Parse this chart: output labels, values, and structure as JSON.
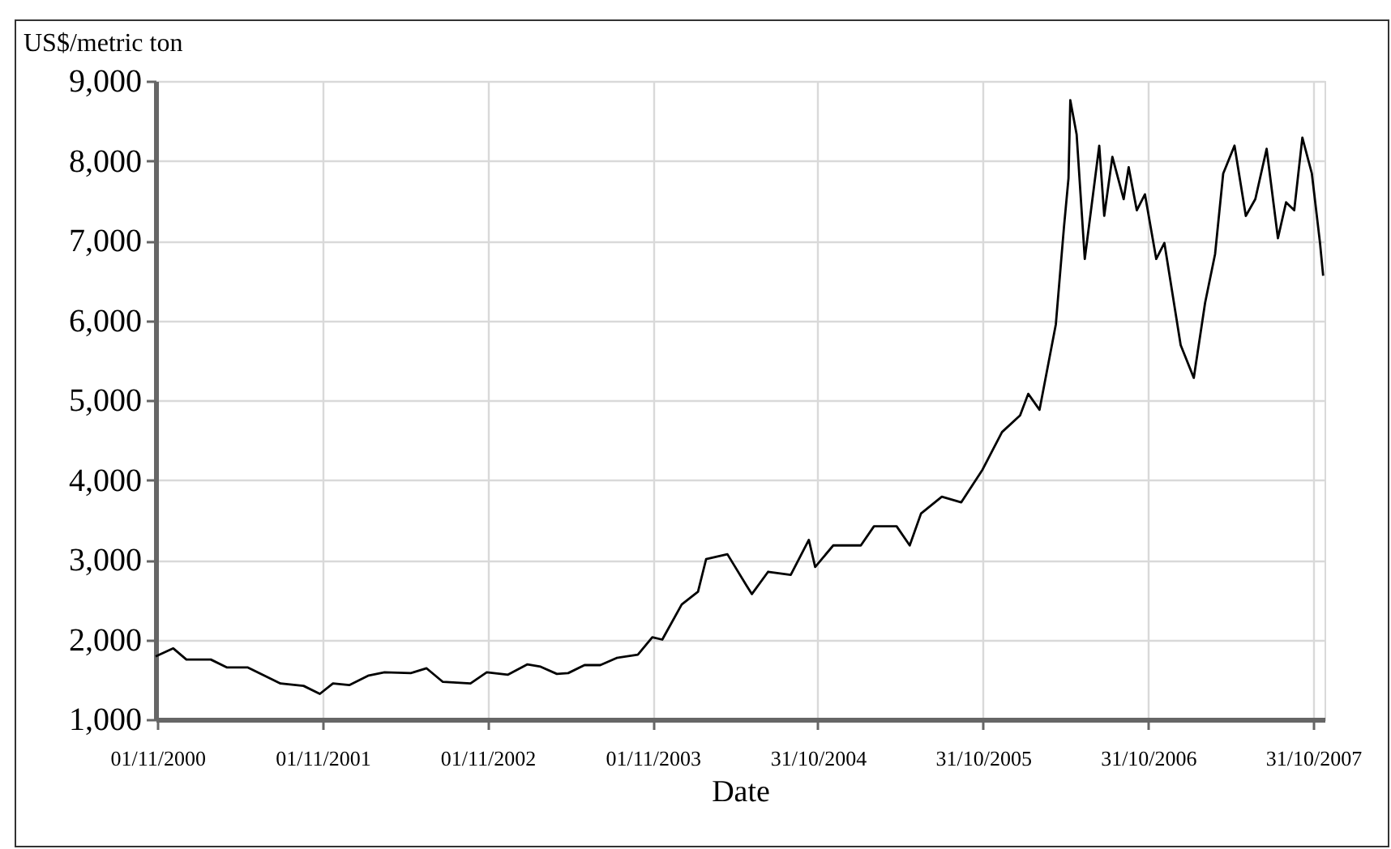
{
  "chart_data": {
    "type": "line",
    "xlabel": "Date",
    "ylabel": "US$/metric ton",
    "grid": true,
    "line_style": "solid",
    "xlim": [
      "2000-10-28",
      "2007-11-25"
    ],
    "ylim": [
      1000,
      9000
    ],
    "yticks": [
      {
        "value": 1000,
        "label": "1,000"
      },
      {
        "value": 2000,
        "label": "2,000"
      },
      {
        "value": 3000,
        "label": "3,000"
      },
      {
        "value": 4000,
        "label": "4,000"
      },
      {
        "value": 5000,
        "label": "5,000"
      },
      {
        "value": 6000,
        "label": "6,000"
      },
      {
        "value": 7000,
        "label": "7,000"
      },
      {
        "value": 8000,
        "label": "8,000"
      },
      {
        "value": 9000,
        "label": "9,000"
      }
    ],
    "xticks": [
      {
        "value": "2000-11-01",
        "label": "01/11/2000"
      },
      {
        "value": "2001-11-01",
        "label": "01/11/2001"
      },
      {
        "value": "2002-11-01",
        "label": "01/11/2002"
      },
      {
        "value": "2003-11-01",
        "label": "01/11/2003"
      },
      {
        "value": "2004-10-31",
        "label": "31/10/2004"
      },
      {
        "value": "2005-10-31",
        "label": "31/10/2005"
      },
      {
        "value": "2006-10-31",
        "label": "31/10/2006"
      },
      {
        "value": "2007-10-31",
        "label": "31/10/2007"
      }
    ],
    "x": [
      "2000-10-28",
      "2000-12-06",
      "2001-01-04",
      "2001-02-27",
      "2001-04-04",
      "2001-05-20",
      "2001-07-31",
      "2001-09-20",
      "2001-10-26",
      "2001-11-24",
      "2001-12-30",
      "2002-02-11",
      "2002-03-18",
      "2002-05-15",
      "2002-06-19",
      "2002-07-25",
      "2002-09-24",
      "2002-10-30",
      "2002-12-16",
      "2003-01-28",
      "2003-02-26",
      "2003-04-03",
      "2003-04-28",
      "2003-06-03",
      "2003-07-08",
      "2003-08-13",
      "2003-09-29",
      "2003-10-31",
      "2003-11-22",
      "2004-01-04",
      "2004-02-09",
      "2004-02-27",
      "2004-04-14",
      "2004-05-27",
      "2004-06-07",
      "2004-07-13",
      "2004-09-01",
      "2004-10-11",
      "2004-10-25",
      "2004-12-04",
      "2005-02-03",
      "2005-03-04",
      "2005-04-23",
      "2005-05-22",
      "2005-06-16",
      "2005-08-01",
      "2005-09-13",
      "2005-10-30",
      "2005-12-12",
      "2006-01-21",
      "2006-02-08",
      "2006-03-05",
      "2006-04-10",
      "2006-04-28",
      "2006-05-08",
      "2006-05-12",
      "2006-05-26",
      "2006-06-13",
      "2006-07-15",
      "2006-07-26",
      "2006-08-13",
      "2006-09-07",
      "2006-09-18",
      "2006-10-06",
      "2006-10-24",
      "2006-11-18",
      "2006-12-06",
      "2007-01-11",
      "2007-02-09",
      "2007-03-06",
      "2007-03-28",
      "2007-04-15",
      "2007-05-10",
      "2007-06-04",
      "2007-06-25",
      "2007-07-20",
      "2007-08-14",
      "2007-09-01",
      "2007-09-19",
      "2007-10-07",
      "2007-10-28",
      "2007-11-15",
      "2007-11-22"
    ],
    "series": [
      {
        "color": "#000000",
        "values": [
          1790,
          1890,
          1750,
          1750,
          1650,
          1650,
          1450,
          1420,
          1320,
          1450,
          1430,
          1550,
          1590,
          1580,
          1640,
          1470,
          1450,
          1590,
          1560,
          1690,
          1660,
          1570,
          1580,
          1680,
          1680,
          1770,
          1810,
          2030,
          2000,
          2440,
          2600,
          3010,
          3070,
          2670,
          2570,
          2850,
          2810,
          3250,
          2910,
          3180,
          3180,
          3420,
          3420,
          3180,
          3580,
          3790,
          3720,
          4130,
          4600,
          4810,
          5080,
          4880,
          5950,
          7170,
          7780,
          8760,
          8330,
          6770,
          8190,
          7310,
          8050,
          7520,
          7920,
          7380,
          7580,
          6770,
          6970,
          5690,
          5280,
          6220,
          6830,
          7840,
          8190,
          7310,
          7520,
          8150,
          7030,
          7480,
          7380,
          8290,
          7840,
          6970,
          6560
        ]
      }
    ]
  }
}
